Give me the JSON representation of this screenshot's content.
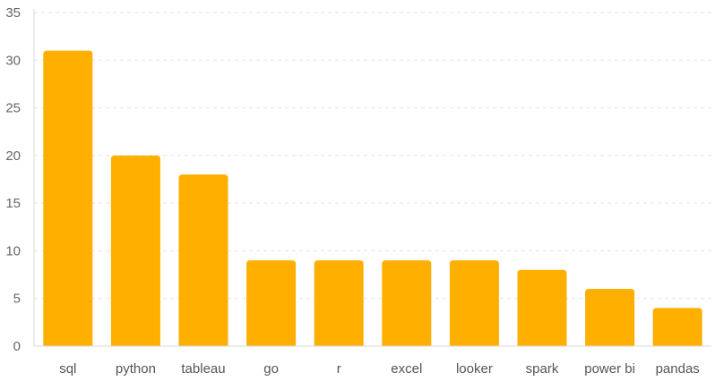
{
  "chart_data": {
    "type": "bar",
    "title": "",
    "xlabel": "",
    "ylabel": "",
    "categories": [
      "sql",
      "python",
      "tableau",
      "go",
      "r",
      "excel",
      "looker",
      "spark",
      "power bi",
      "pandas"
    ],
    "values": [
      31,
      20,
      18,
      9,
      9,
      9,
      9,
      8,
      6,
      4
    ],
    "ylim": [
      0,
      35
    ],
    "yticks": [
      0,
      5,
      10,
      15,
      20,
      25,
      30,
      35
    ],
    "grid": true,
    "legend": "none",
    "bar_color": "#FFAF00"
  }
}
